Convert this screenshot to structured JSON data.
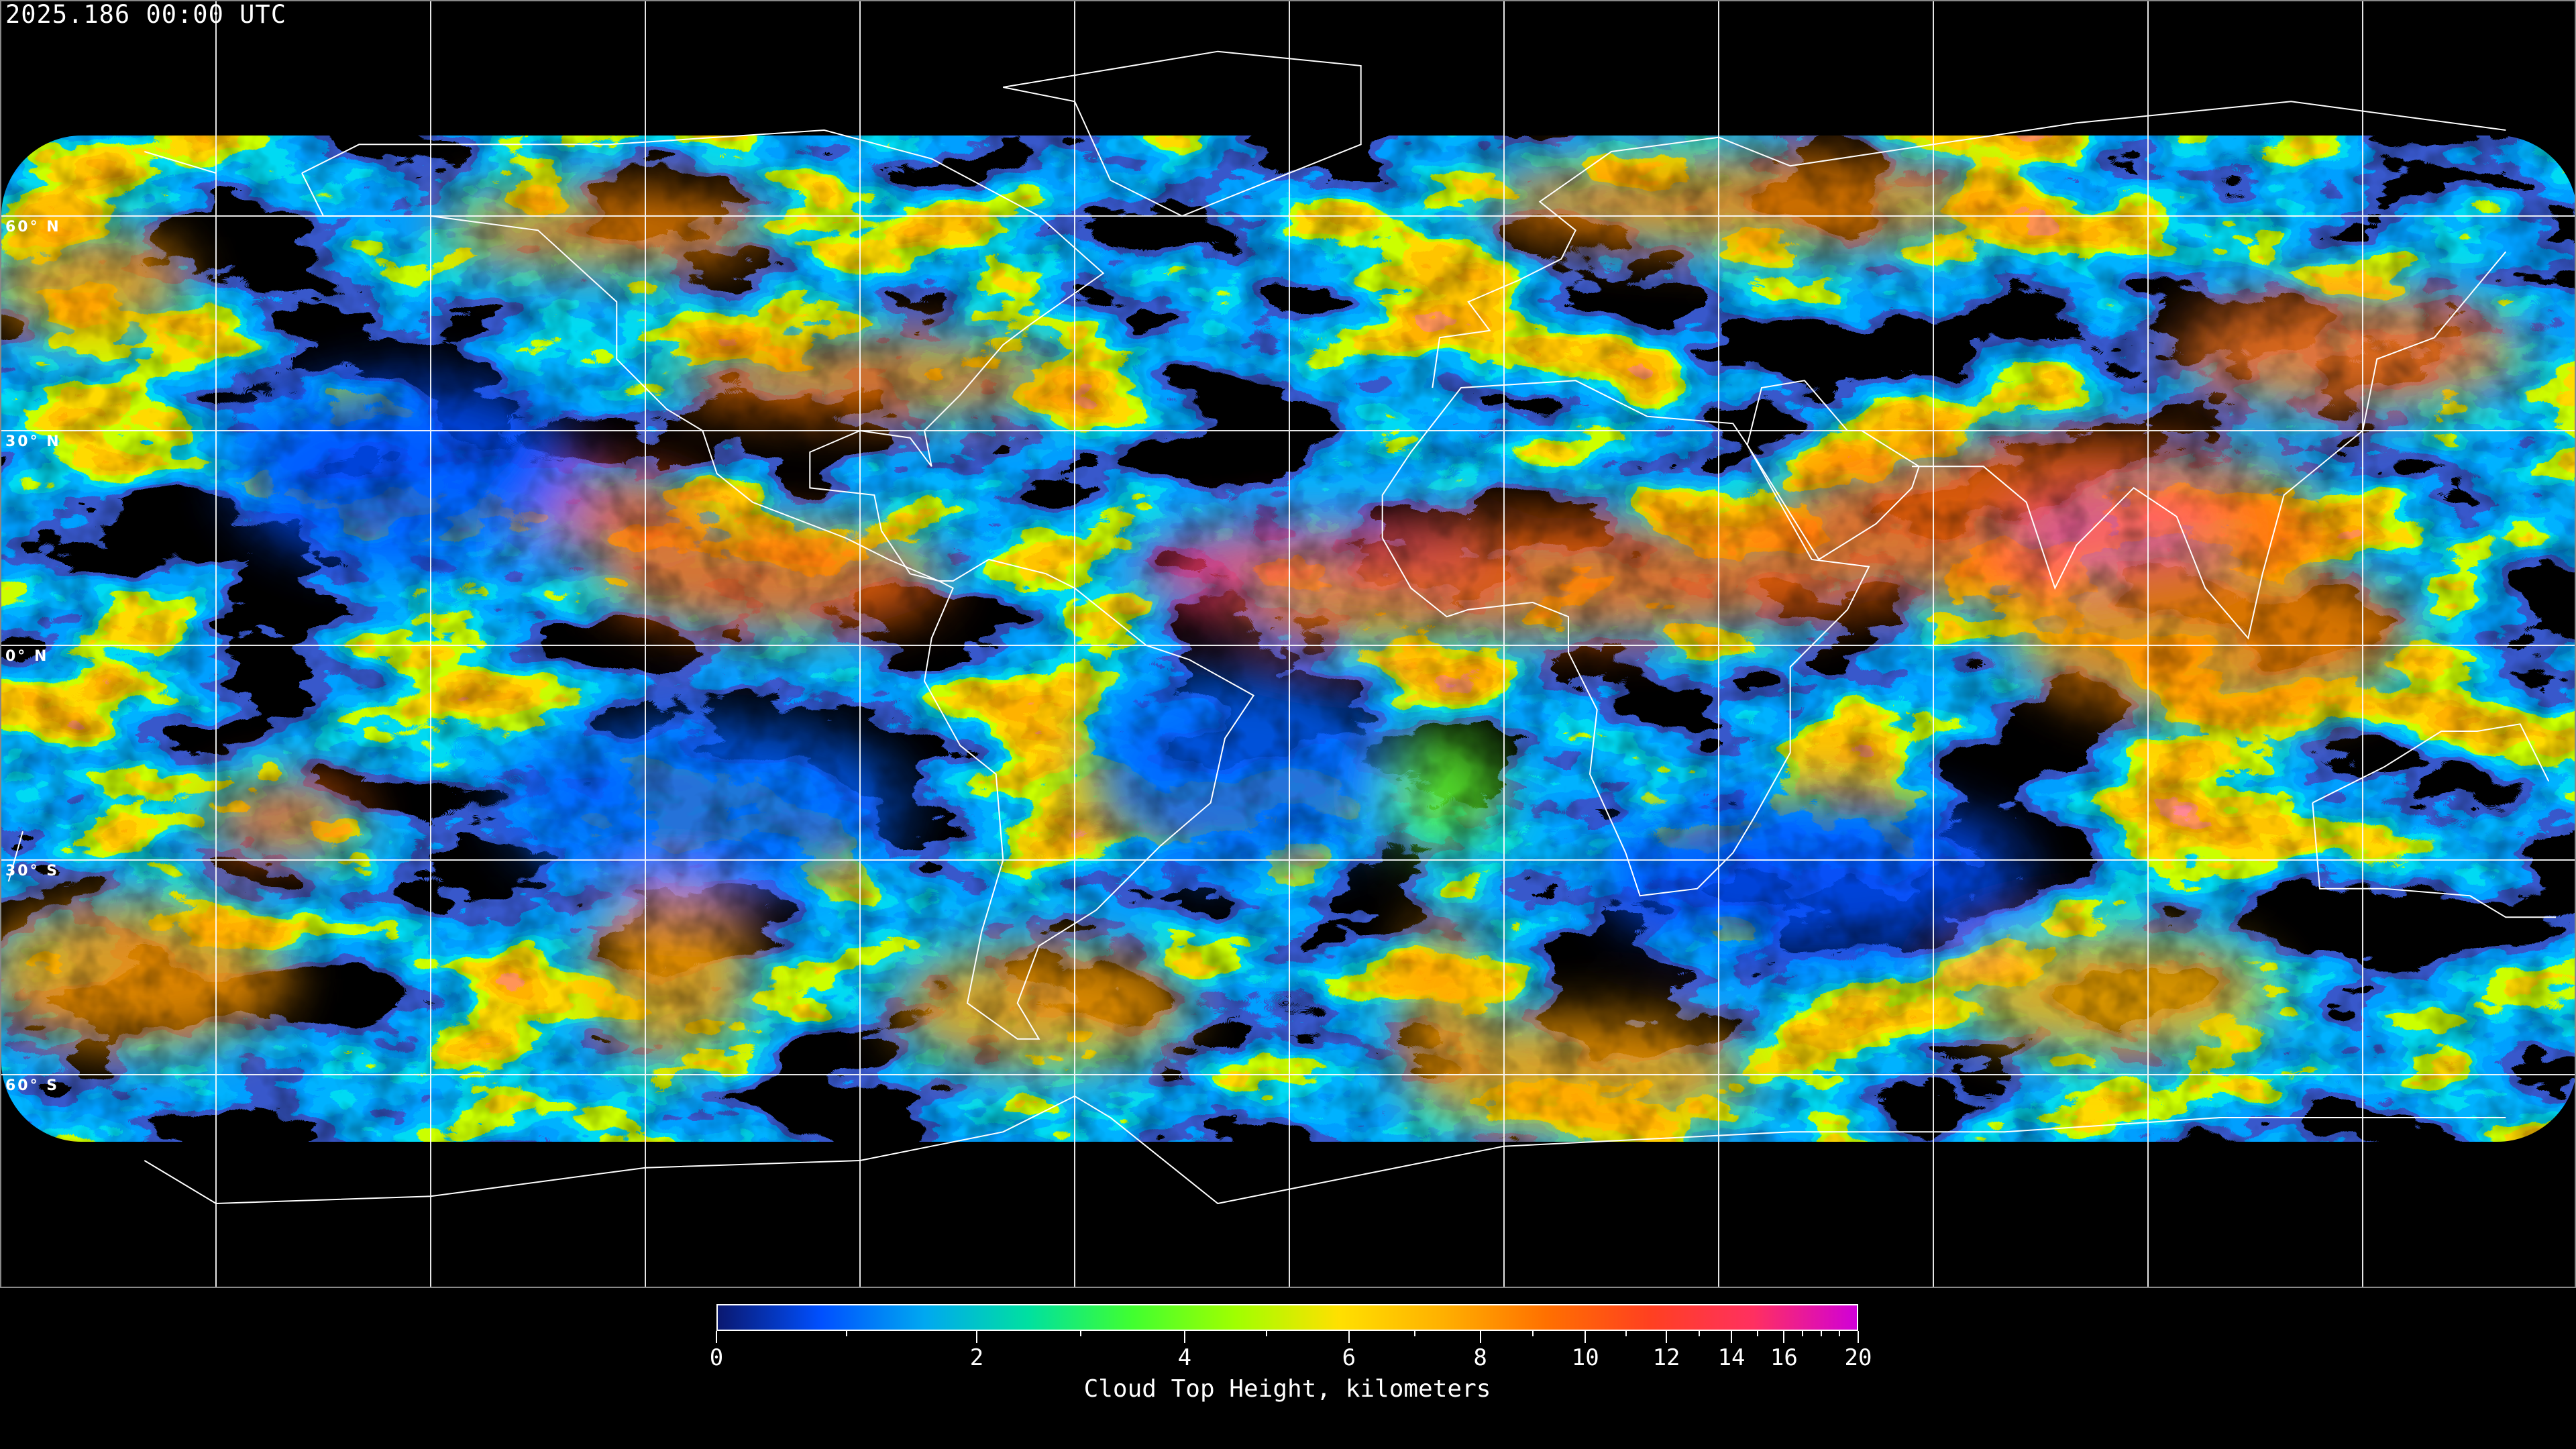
{
  "title": "2025.186 00:00 UTC",
  "latitude_labels": [
    "60° N",
    "30° N",
    "0° N",
    "30° S",
    "60° S"
  ],
  "colorbar": {
    "label": "Cloud Top Height, kilometers",
    "min": 0,
    "max": 20,
    "major_ticks": [
      "0",
      "2",
      "4",
      "6",
      "8",
      "10",
      "12",
      "14",
      "16",
      "20"
    ],
    "minor_ticks": [
      1,
      3,
      5,
      7,
      9,
      11,
      13,
      15,
      17,
      18,
      19
    ],
    "colors": [
      "#0a1870",
      "#0050ff",
      "#00a8f0",
      "#00e0a0",
      "#40ff30",
      "#a0ff00",
      "#ffe000",
      "#ffb000",
      "#ff7000",
      "#ff4020",
      "#ff3060",
      "#d000d8"
    ]
  },
  "colors": {
    "background": "#000000",
    "gridlines": "#ffffff",
    "coastlines": "#ffffff"
  }
}
